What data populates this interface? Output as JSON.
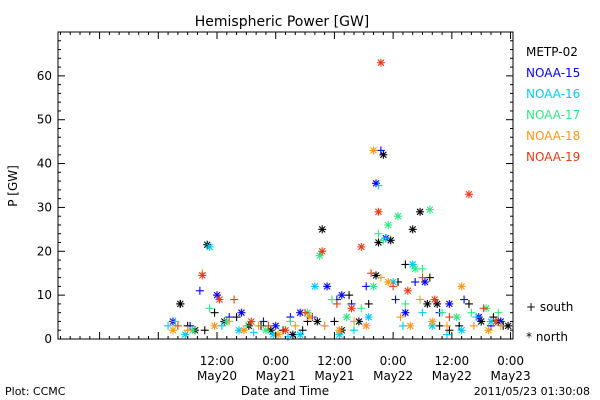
{
  "chart_data": {
    "type": "scatter",
    "title": "Hemispheric Power [GW]",
    "xlabel": "Date and Time",
    "ylabel": "P [GW]",
    "x_range": [
      "2011-05-19 03:30",
      "2011-05-23 00:30"
    ],
    "ylim": [
      0,
      70
    ],
    "yticks": [
      0,
      10,
      20,
      30,
      40,
      50,
      60
    ],
    "xticks": [
      {
        "time": "2011-05-20 12:00",
        "line1": "12:00",
        "line2": "May20"
      },
      {
        "time": "2011-05-21 00:00",
        "line1": "0:00",
        "line2": "May21"
      },
      {
        "time": "2011-05-21 12:00",
        "line1": "12:00",
        "line2": "May21"
      },
      {
        "time": "2011-05-22 00:00",
        "line1": "0:00",
        "line2": "May22"
      },
      {
        "time": "2011-05-22 12:00",
        "line1": "12:00",
        "line2": "May22"
      },
      {
        "time": "2011-05-23 00:00",
        "line1": "0:00",
        "line2": "May23"
      }
    ],
    "grid": false,
    "legend_position": "right",
    "marker_legend": [
      {
        "symbol": "+",
        "label": "south"
      },
      {
        "symbol": "*",
        "label": "north"
      }
    ],
    "series": [
      {
        "name": "METP-02",
        "color": "#000000",
        "points": [
          [
            "2011-05-20 04:30",
            8,
            "n"
          ],
          [
            "2011-05-20 04:30",
            8,
            "s"
          ],
          [
            "2011-05-20 06:00",
            3,
            "s"
          ],
          [
            "2011-05-20 07:30",
            2,
            "n"
          ],
          [
            "2011-05-20 09:30",
            2,
            "s"
          ],
          [
            "2011-05-20 10:00",
            21.5,
            "n"
          ],
          [
            "2011-05-20 11:30",
            6,
            "s"
          ],
          [
            "2011-05-20 13:30",
            4,
            "n"
          ],
          [
            "2011-05-20 16:00",
            5,
            "s"
          ],
          [
            "2011-05-20 18:30",
            3,
            "n"
          ],
          [
            "2011-05-20 21:00",
            3,
            "s"
          ],
          [
            "2011-05-20 23:00",
            2,
            "n"
          ],
          [
            "2011-05-21 01:30",
            2,
            "s"
          ],
          [
            "2011-05-21 03:30",
            1,
            "n"
          ],
          [
            "2011-05-21 05:30",
            2,
            "s"
          ],
          [
            "2011-05-21 06:30",
            4,
            "s"
          ],
          [
            "2011-05-21 08:30",
            4,
            "n"
          ],
          [
            "2011-05-21 09:30",
            25,
            "n"
          ],
          [
            "2011-05-21 12:00",
            4,
            "s"
          ],
          [
            "2011-05-21 13:30",
            2,
            "n"
          ],
          [
            "2011-05-21 15:00",
            10,
            "s"
          ],
          [
            "2011-05-21 17:00",
            4,
            "n"
          ],
          [
            "2011-05-21 19:00",
            8,
            "s"
          ],
          [
            "2011-05-21 20:30",
            14.5,
            "n"
          ],
          [
            "2011-05-21 21:00",
            22,
            "n"
          ],
          [
            "2011-05-21 22:00",
            42,
            "n"
          ],
          [
            "2011-05-21 22:30",
            23,
            "s"
          ],
          [
            "2011-05-21 23:30",
            22.5,
            "n"
          ],
          [
            "2011-05-22 02:30",
            17,
            "s"
          ],
          [
            "2011-05-22 04:00",
            25,
            "n"
          ],
          [
            "2011-05-22 05:30",
            29,
            "n"
          ],
          [
            "2011-05-22 07:00",
            8,
            "n"
          ],
          [
            "2011-05-22 09:30",
            3,
            "s"
          ],
          [
            "2011-05-22 11:30",
            2,
            "s"
          ],
          [
            "2011-05-22 13:30",
            3,
            "s"
          ],
          [
            "2011-05-22 15:30",
            8,
            "s"
          ],
          [
            "2011-05-22 18:00",
            4,
            "n"
          ],
          [
            "2011-05-22 20:30",
            5,
            "s"
          ],
          [
            "2011-05-22 21:30",
            4,
            "n"
          ],
          [
            "2011-05-22 22:30",
            3,
            "s"
          ],
          [
            "2011-05-22 23:30",
            3,
            "n"
          ],
          [
            "2011-05-22 01:00",
            13,
            "s"
          ],
          [
            "2011-05-22 07:30",
            14,
            "s"
          ],
          [
            "2011-05-22 09:00",
            8,
            "n"
          ]
        ]
      },
      {
        "name": "NOAA-15",
        "color": "#0000ff",
        "points": [
          [
            "2011-05-20 03:00",
            4,
            "n"
          ],
          [
            "2011-05-20 06:30",
            3,
            "s"
          ],
          [
            "2011-05-20 08:30",
            11,
            "s"
          ],
          [
            "2011-05-20 12:00",
            10,
            "n"
          ],
          [
            "2011-05-20 14:30",
            5,
            "s"
          ],
          [
            "2011-05-20 17:00",
            6,
            "n"
          ],
          [
            "2011-05-20 21:30",
            4,
            "s"
          ],
          [
            "2011-05-21 00:00",
            3,
            "n"
          ],
          [
            "2011-05-21 03:00",
            5,
            "s"
          ],
          [
            "2011-05-21 05:00",
            6,
            "n"
          ],
          [
            "2011-05-21 07:30",
            5,
            "s"
          ],
          [
            "2011-05-21 10:30",
            12,
            "n"
          ],
          [
            "2011-05-21 12:30",
            9,
            "s"
          ],
          [
            "2011-05-21 13:30",
            10,
            "n"
          ],
          [
            "2011-05-21 15:30",
            8,
            "s"
          ],
          [
            "2011-05-21 18:30",
            12,
            "s"
          ],
          [
            "2011-05-21 20:30",
            35.5,
            "n"
          ],
          [
            "2011-05-21 21:30",
            43,
            "s"
          ],
          [
            "2011-05-21 22:30",
            23,
            "n"
          ],
          [
            "2011-05-22 00:30",
            9,
            "s"
          ],
          [
            "2011-05-22 02:30",
            6,
            "n"
          ],
          [
            "2011-05-22 04:30",
            13,
            "s"
          ],
          [
            "2011-05-22 06:30",
            13,
            "n"
          ],
          [
            "2011-05-22 09:30",
            6,
            "s"
          ],
          [
            "2011-05-22 11:30",
            8,
            "n"
          ],
          [
            "2011-05-22 14:30",
            9,
            "s"
          ],
          [
            "2011-05-22 17:30",
            5,
            "n"
          ],
          [
            "2011-05-22 20:00",
            3,
            "s"
          ],
          [
            "2011-05-22 22:00",
            4,
            "n"
          ]
        ]
      },
      {
        "name": "NOAA-16",
        "color": "#00c8ff",
        "points": [
          [
            "2011-05-20 02:00",
            3,
            "s"
          ],
          [
            "2011-05-20 05:30",
            1,
            "n"
          ],
          [
            "2011-05-20 10:30",
            21,
            "n"
          ],
          [
            "2011-05-20 13:00",
            3,
            "s"
          ],
          [
            "2011-05-20 16:30",
            2,
            "n"
          ],
          [
            "2011-05-20 19:30",
            1.5,
            "s"
          ],
          [
            "2011-05-20 23:30",
            1,
            "n"
          ],
          [
            "2011-05-21 02:30",
            0.5,
            "s"
          ],
          [
            "2011-05-21 05:00",
            1,
            "n"
          ],
          [
            "2011-05-21 08:00",
            12,
            "n"
          ],
          [
            "2011-05-21 10:00",
            3,
            "s"
          ],
          [
            "2011-05-21 13:00",
            1,
            "n"
          ],
          [
            "2011-05-21 16:00",
            2,
            "s"
          ],
          [
            "2011-05-21 19:00",
            5,
            "n"
          ],
          [
            "2011-05-21 21:00",
            35,
            "s"
          ],
          [
            "2011-05-21 22:30",
            23,
            "s"
          ],
          [
            "2011-05-22 00:00",
            13,
            "n"
          ],
          [
            "2011-05-22 02:00",
            3,
            "s"
          ],
          [
            "2011-05-22 04:00",
            17,
            "n"
          ],
          [
            "2011-05-22 06:00",
            6,
            "s"
          ],
          [
            "2011-05-22 08:00",
            3,
            "n"
          ],
          [
            "2011-05-22 11:00",
            1,
            "s"
          ],
          [
            "2011-05-22 14:00",
            2,
            "n"
          ],
          [
            "2011-05-22 17:00",
            5,
            "s"
          ],
          [
            "2011-05-22 20:00",
            4,
            "n"
          ]
        ]
      },
      {
        "name": "NOAA-17",
        "color": "#32e682",
        "points": [
          [
            "2011-05-20 03:30",
            4,
            "s"
          ],
          [
            "2011-05-20 07:00",
            2,
            "n"
          ],
          [
            "2011-05-20 10:30",
            7,
            "s"
          ],
          [
            "2011-05-20 14:00",
            4,
            "n"
          ],
          [
            "2011-05-20 18:00",
            3,
            "s"
          ],
          [
            "2011-05-20 22:00",
            2,
            "n"
          ],
          [
            "2011-05-21 03:00",
            4,
            "s"
          ],
          [
            "2011-05-21 06:30",
            6,
            "n"
          ],
          [
            "2011-05-21 09:00",
            19,
            "n"
          ],
          [
            "2011-05-21 11:30",
            9,
            "s"
          ],
          [
            "2011-05-21 14:30",
            5,
            "n"
          ],
          [
            "2011-05-21 17:30",
            7,
            "s"
          ],
          [
            "2011-05-21 20:00",
            12,
            "n"
          ],
          [
            "2011-05-21 21:00",
            24,
            "s"
          ],
          [
            "2011-05-21 22:00",
            22.5,
            "s"
          ],
          [
            "2011-05-21 23:00",
            26,
            "n"
          ],
          [
            "2011-05-22 01:00",
            28,
            "n"
          ],
          [
            "2011-05-22 02:30",
            8,
            "s"
          ],
          [
            "2011-05-22 04:30",
            16,
            "n"
          ],
          [
            "2011-05-22 06:00",
            16,
            "s"
          ],
          [
            "2011-05-22 07:30",
            29.5,
            "n"
          ],
          [
            "2011-05-22 10:00",
            6,
            "s"
          ],
          [
            "2011-05-22 13:00",
            5,
            "n"
          ],
          [
            "2011-05-22 16:00",
            6,
            "s"
          ],
          [
            "2011-05-22 19:00",
            7,
            "n"
          ],
          [
            "2011-05-22 21:30",
            6,
            "s"
          ]
        ]
      },
      {
        "name": "NOAA-18",
        "color": "#ff9614",
        "points": [
          [
            "2011-05-20 03:00",
            2,
            "n"
          ],
          [
            "2011-05-20 06:00",
            2,
            "s"
          ],
          [
            "2011-05-20 09:00",
            15,
            "s"
          ],
          [
            "2011-05-20 11:30",
            3,
            "n"
          ],
          [
            "2011-05-20 14:30",
            4,
            "s"
          ],
          [
            "2011-05-20 17:30",
            2,
            "n"
          ],
          [
            "2011-05-20 20:30",
            3,
            "s"
          ],
          [
            "2011-05-21 00:30",
            1,
            "n"
          ],
          [
            "2011-05-21 04:00",
            3,
            "s"
          ],
          [
            "2011-05-21 07:00",
            5,
            "n"
          ],
          [
            "2011-05-21 10:00",
            3,
            "s"
          ],
          [
            "2011-05-21 13:00",
            2,
            "n"
          ],
          [
            "2011-05-21 16:00",
            4,
            "s"
          ],
          [
            "2011-05-21 18:30",
            3,
            "n"
          ],
          [
            "2011-05-21 20:00",
            43,
            "n"
          ],
          [
            "2011-05-21 21:30",
            14,
            "s"
          ],
          [
            "2011-05-21 23:00",
            13,
            "n"
          ],
          [
            "2011-05-22 01:30",
            5,
            "s"
          ],
          [
            "2011-05-22 03:30",
            3,
            "n"
          ],
          [
            "2011-05-22 05:30",
            9,
            "s"
          ],
          [
            "2011-05-22 08:00",
            4,
            "n"
          ],
          [
            "2011-05-22 11:00",
            3,
            "s"
          ],
          [
            "2011-05-22 14:00",
            12,
            "n"
          ],
          [
            "2011-05-22 16:30",
            3,
            "s"
          ],
          [
            "2011-05-22 19:30",
            2,
            "n"
          ],
          [
            "2011-05-22 22:00",
            3,
            "s"
          ]
        ]
      },
      {
        "name": "NOAA-19",
        "color": "#e63c14",
        "points": [
          [
            "2011-05-20 04:00",
            3,
            "s"
          ],
          [
            "2011-05-20 09:00",
            14.5,
            "n"
          ],
          [
            "2011-05-20 12:30",
            9,
            "n"
          ],
          [
            "2011-05-20 15:30",
            9,
            "s"
          ],
          [
            "2011-05-20 19:00",
            4,
            "n"
          ],
          [
            "2011-05-20 22:30",
            3,
            "s"
          ],
          [
            "2011-05-21 02:00",
            2,
            "n"
          ],
          [
            "2011-05-21 06:00",
            6,
            "s"
          ],
          [
            "2011-05-21 09:30",
            20,
            "n"
          ],
          [
            "2011-05-21 12:30",
            8,
            "s"
          ],
          [
            "2011-05-21 15:30",
            7,
            "n"
          ],
          [
            "2011-05-21 17:30",
            21,
            "n"
          ],
          [
            "2011-05-21 19:30",
            15,
            "s"
          ],
          [
            "2011-05-21 21:00",
            29,
            "n"
          ],
          [
            "2011-05-21 21:30",
            63,
            "n"
          ],
          [
            "2011-05-22 00:00",
            12,
            "s"
          ],
          [
            "2011-05-22 03:00",
            11,
            "n"
          ],
          [
            "2011-05-22 06:00",
            14,
            "s"
          ],
          [
            "2011-05-22 08:30",
            9,
            "n"
          ],
          [
            "2011-05-22 11:30",
            5,
            "s"
          ],
          [
            "2011-05-22 15:30",
            33,
            "n"
          ],
          [
            "2011-05-22 18:30",
            7,
            "s"
          ],
          [
            "2011-05-22 21:00",
            4,
            "n"
          ]
        ]
      }
    ]
  },
  "footer": {
    "left": "Plot: CCMC",
    "right": "2011/05/23 01:30:08"
  }
}
